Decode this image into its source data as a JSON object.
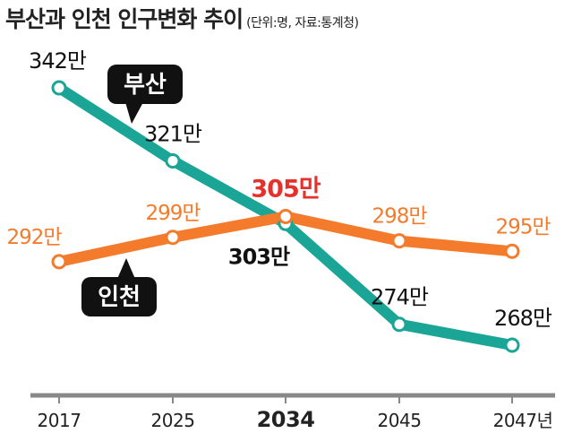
{
  "title": "부산과 인천 인구변화 추이",
  "subtitle": "(단위:명, 자료:통계청)",
  "colors": {
    "busan": "#1aa597",
    "incheon": "#f47b2c",
    "axis": "#888888",
    "callout": "#111111",
    "highlight": "#e5312b"
  },
  "chart_data": {
    "type": "line",
    "title": "부산과 인천 인구변화 추이",
    "subtitle": "(단위:명, 자료:통계청)",
    "categories": [
      "2017",
      "2025",
      "2034",
      "2045",
      "2047년"
    ],
    "highlight_category": "2034",
    "ylim": [
      255,
      350
    ],
    "grid": false,
    "series": [
      {
        "name": "부산",
        "color": "#1aa597",
        "values": [
          342,
          321,
          303,
          274,
          268
        ],
        "labels": [
          "342만",
          "321만",
          "303만",
          "274만",
          "268만"
        ]
      },
      {
        "name": "인천",
        "color": "#f47b2c",
        "values": [
          292,
          299,
          305,
          298,
          295
        ],
        "labels": [
          "292만",
          "299만",
          "305만",
          "298만",
          "295만"
        ]
      }
    ]
  }
}
